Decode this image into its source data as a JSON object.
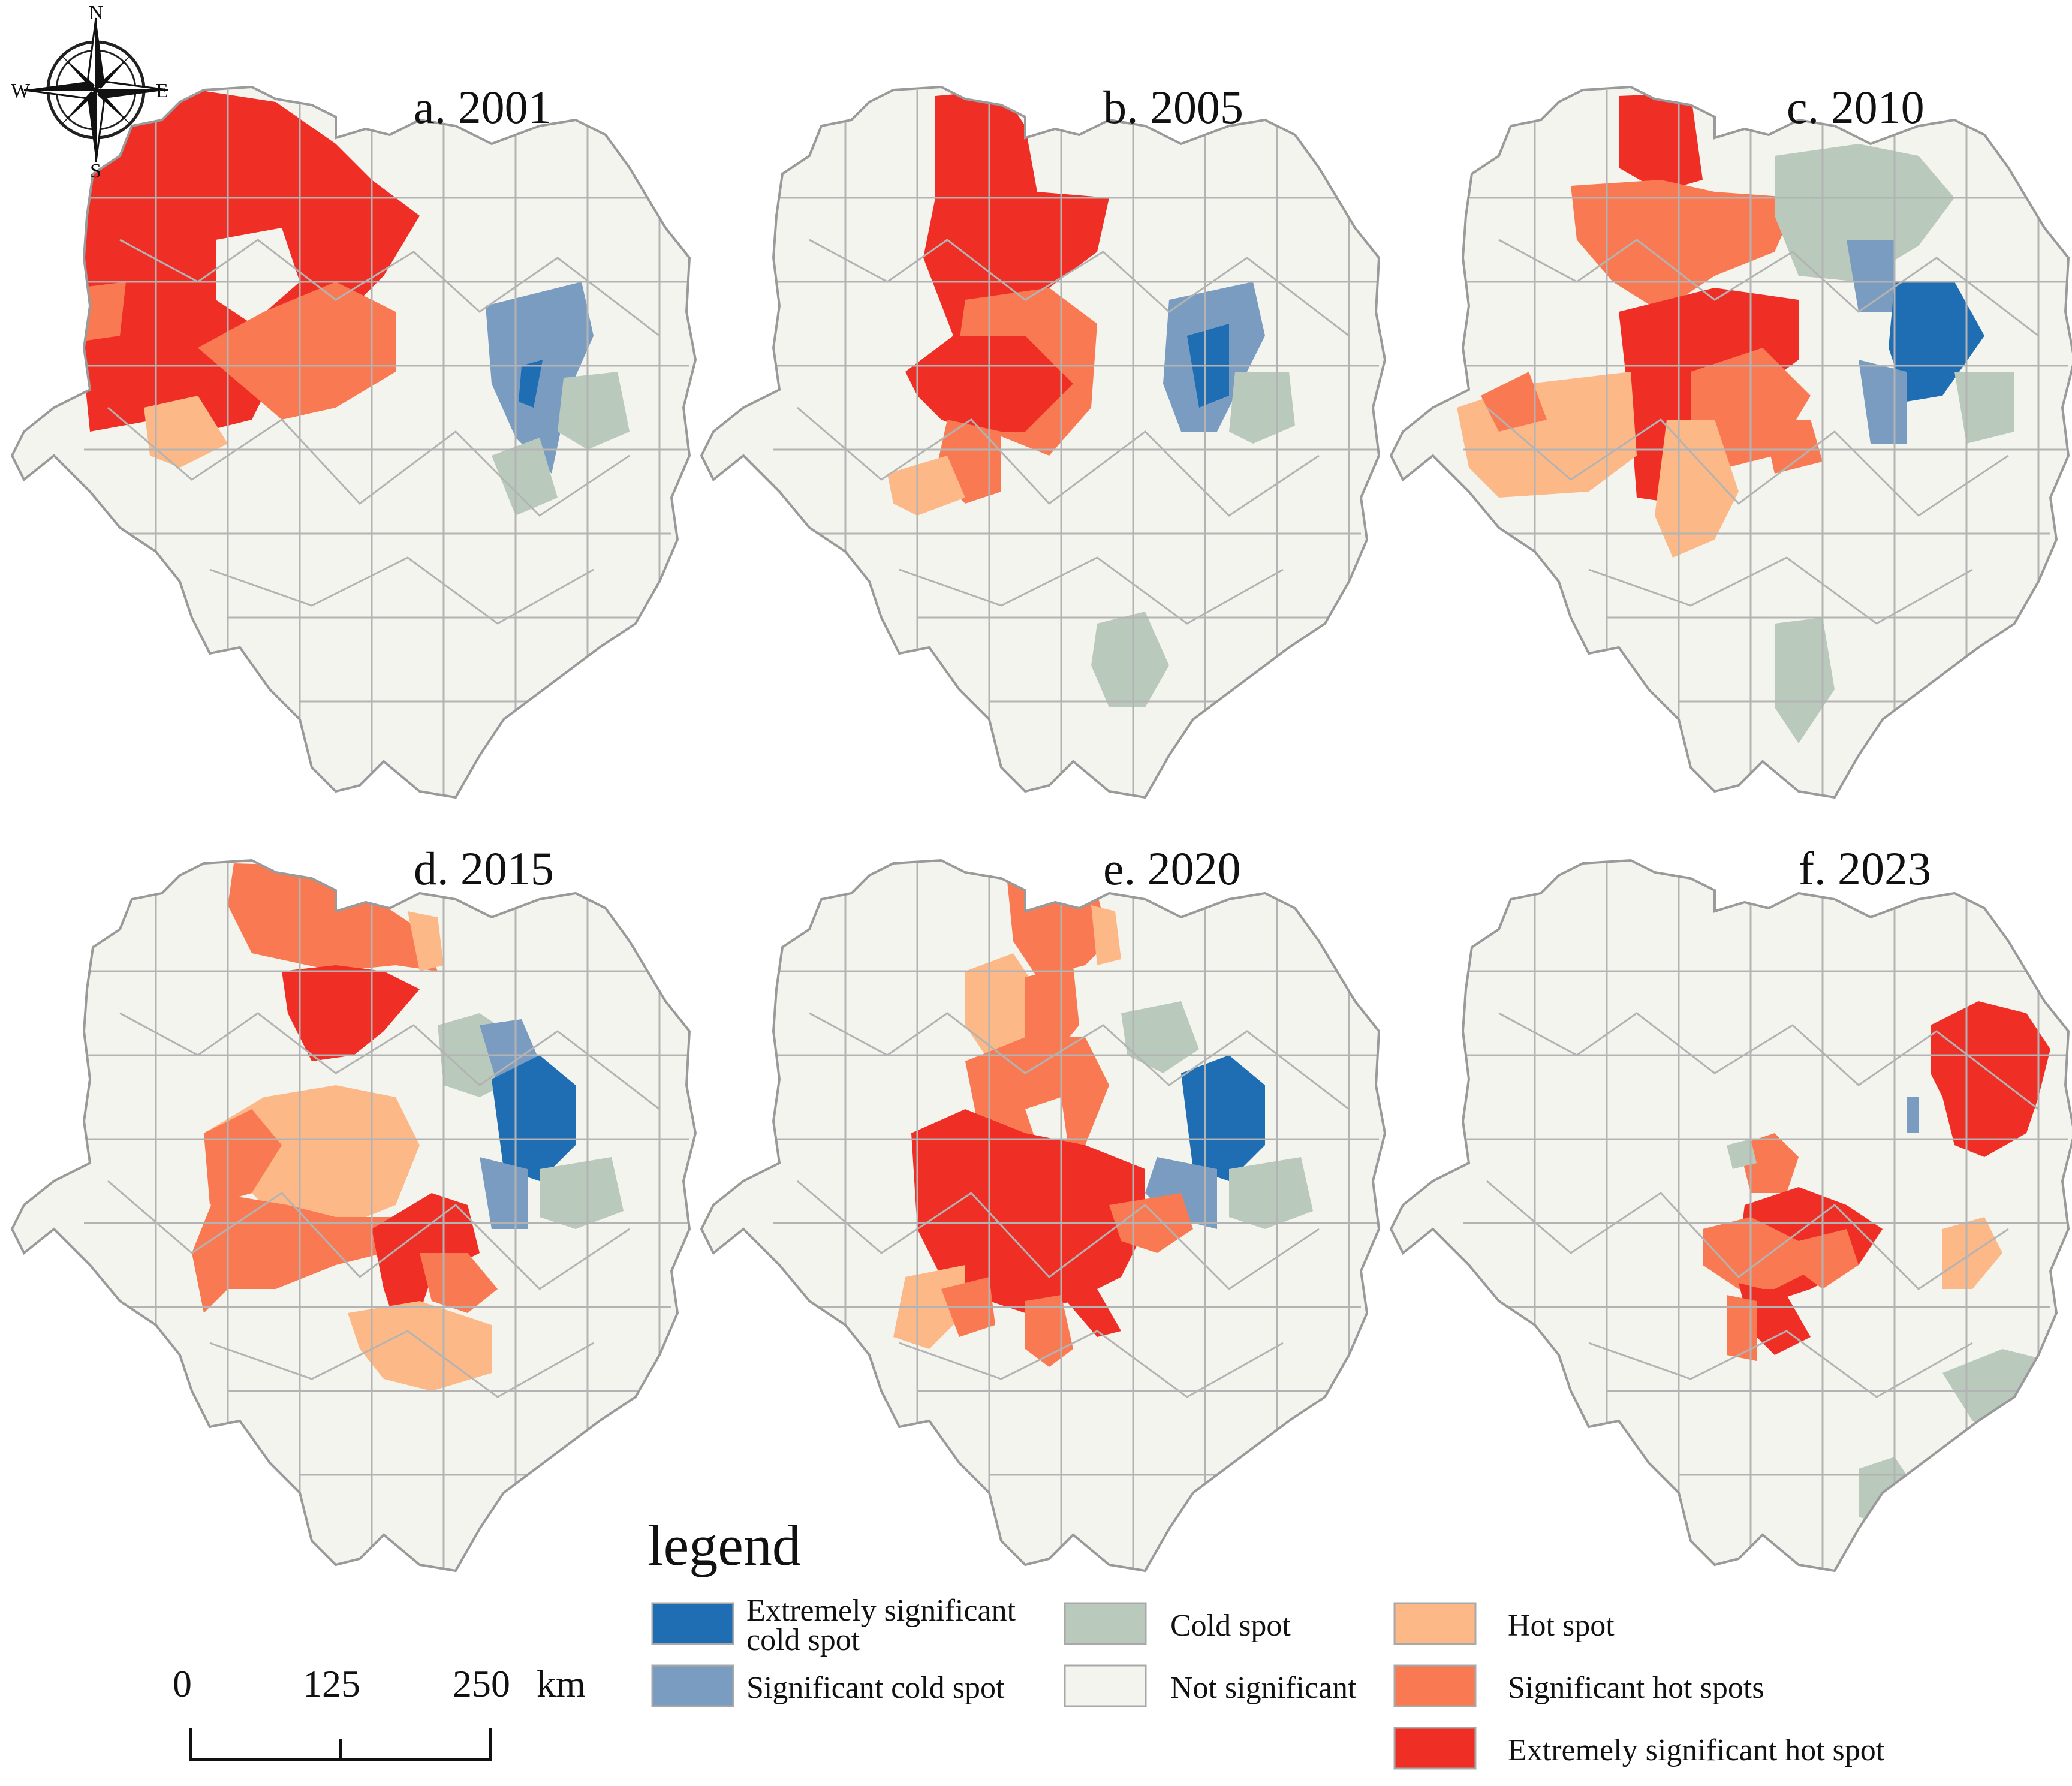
{
  "compass": {
    "n": "N",
    "s": "S",
    "e": "E",
    "w": "W"
  },
  "panels": [
    {
      "id": "a",
      "title": "a. 2001"
    },
    {
      "id": "b",
      "title": "b. 2005"
    },
    {
      "id": "c",
      "title": "c. 2010"
    },
    {
      "id": "d",
      "title": "d. 2015"
    },
    {
      "id": "e",
      "title": "e. 2020"
    },
    {
      "id": "f",
      "title": "f. 2023"
    }
  ],
  "legend": {
    "title": "legend",
    "items": [
      {
        "label_line1": "Extremely significant",
        "label_line2": "cold spot",
        "color": "#1f6db3"
      },
      {
        "label_line1": "Significant cold spot",
        "label_line2": "",
        "color": "#7a9cc0"
      },
      {
        "label_line1": "Cold spot",
        "label_line2": "",
        "color": "#b9c9bc"
      },
      {
        "label_line1": "Not significant",
        "label_line2": "",
        "color": "#f4f4ef"
      },
      {
        "label_line1": "Hot spot",
        "label_line2": "",
        "color": "#fdb887"
      },
      {
        "label_line1": "Significant hot spots",
        "label_line2": "",
        "color": "#f97a52"
      },
      {
        "label_line1": "Extremely significant hot spot",
        "label_line2": "",
        "color": "#ef2f26"
      }
    ]
  },
  "scalebar": {
    "labels": [
      "0",
      "125",
      "250"
    ],
    "unit": "km"
  }
}
